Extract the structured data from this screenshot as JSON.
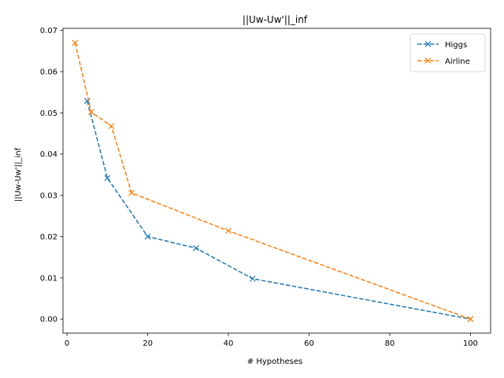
{
  "chart_data": {
    "type": "line",
    "title": "||Uw-Uw'||_inf",
    "xlabel": "# Hypotheses",
    "ylabel": "||Uw-Uw'||_inf",
    "xlim": [
      -1,
      105
    ],
    "ylim": [
      -0.0034,
      0.0705
    ],
    "xticks": [
      0,
      20,
      40,
      60,
      80,
      100
    ],
    "xtick_labels": [
      "0",
      "20",
      "40",
      "60",
      "80",
      "100"
    ],
    "yticks": [
      0.0,
      0.01,
      0.02,
      0.03,
      0.04,
      0.05,
      0.06,
      0.07
    ],
    "ytick_labels": [
      "0.00",
      "0.01",
      "0.02",
      "0.03",
      "0.04",
      "0.05",
      "0.06",
      "0.07"
    ],
    "grid": false,
    "legend_position": "top-right",
    "series": [
      {
        "name": "Higgs",
        "color": "#1f77b4",
        "marker": "x",
        "linestyle": "dashed",
        "x": [
          5,
          10,
          20,
          32,
          46,
          100
        ],
        "y": [
          0.0529,
          0.0342,
          0.02,
          0.0172,
          0.0098,
          0.0
        ]
      },
      {
        "name": "Airline",
        "color": "#ff7f0e",
        "marker": "x",
        "linestyle": "dashed",
        "x": [
          2,
          6,
          11,
          16,
          40,
          100
        ],
        "y": [
          0.067,
          0.0502,
          0.0468,
          0.0306,
          0.0214,
          0.0
        ]
      }
    ]
  }
}
